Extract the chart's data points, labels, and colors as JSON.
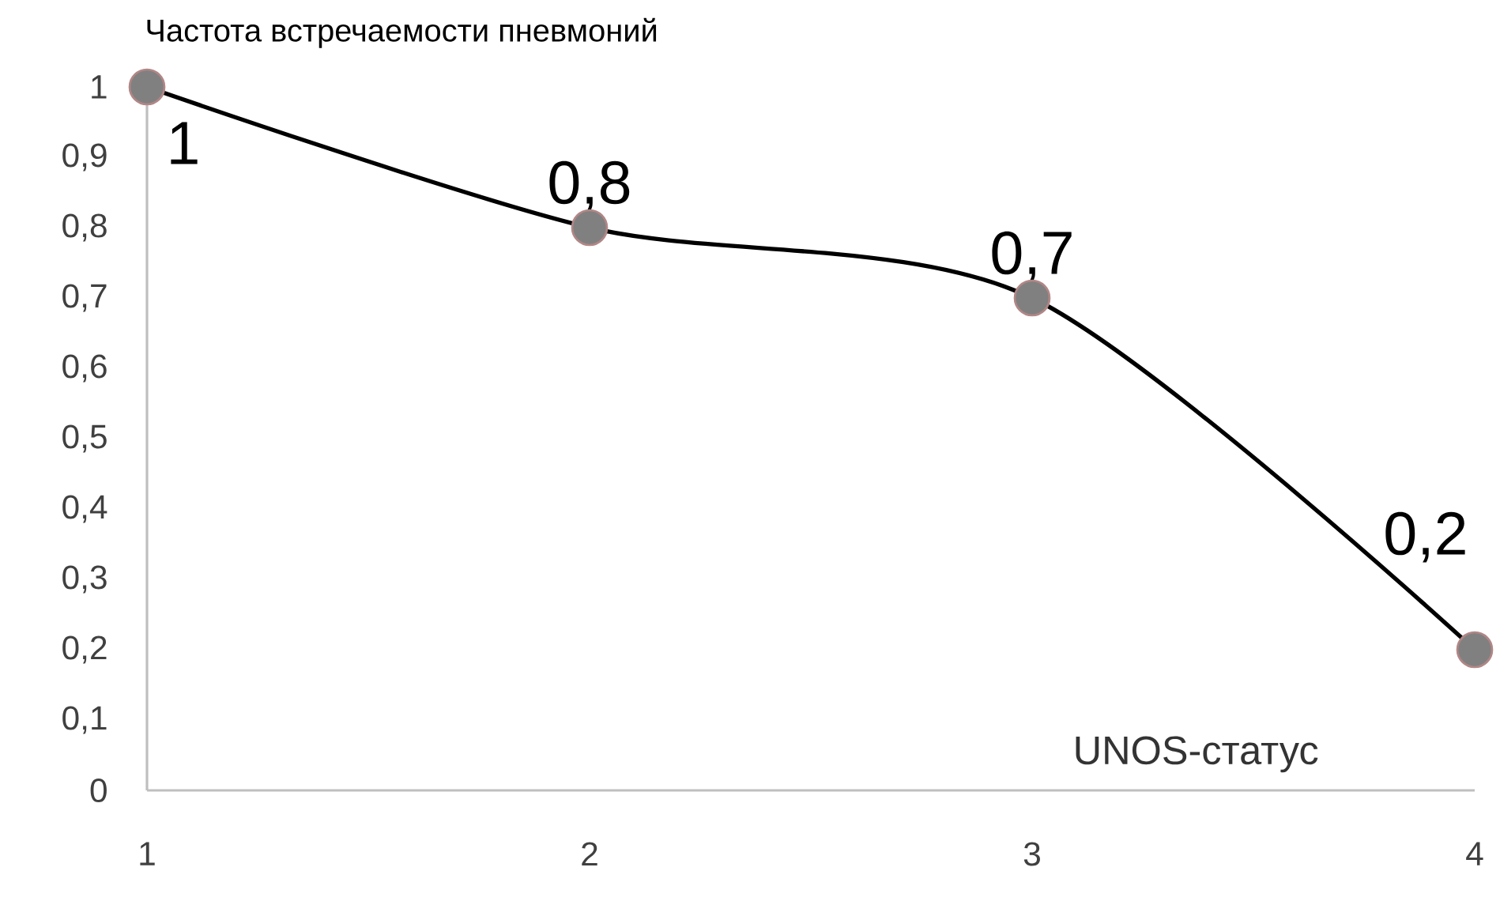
{
  "chart_data": {
    "type": "line",
    "title": "Частота встречаемости пневмоний",
    "xlabel": "UNOS-статус",
    "categories": [
      "1",
      "2",
      "3",
      "4"
    ],
    "values": [
      1,
      0.8,
      0.7,
      0.2
    ],
    "value_labels": [
      "1",
      "0,8",
      "0,7",
      "0,2"
    ],
    "color": "#000000",
    "marker": "circle",
    "line_style": "solid",
    "grid": false,
    "ylim": [
      0,
      1
    ],
    "yticks": [
      0,
      {
        "value": 0.1,
        "label": "0,1"
      },
      {
        "value": 0.2,
        "label": "0,2"
      },
      {
        "value": 0.3,
        "label": "0,3"
      },
      {
        "value": 0.4,
        "label": "0,4"
      },
      {
        "value": 0.5,
        "label": "0,5"
      },
      {
        "value": 0.6,
        "label": "0,6"
      },
      {
        "value": 0.7,
        "label": "0,7"
      },
      {
        "value": 0.8,
        "label": "0,8"
      },
      {
        "value": 0.9,
        "label": "0,9"
      },
      1
    ]
  }
}
